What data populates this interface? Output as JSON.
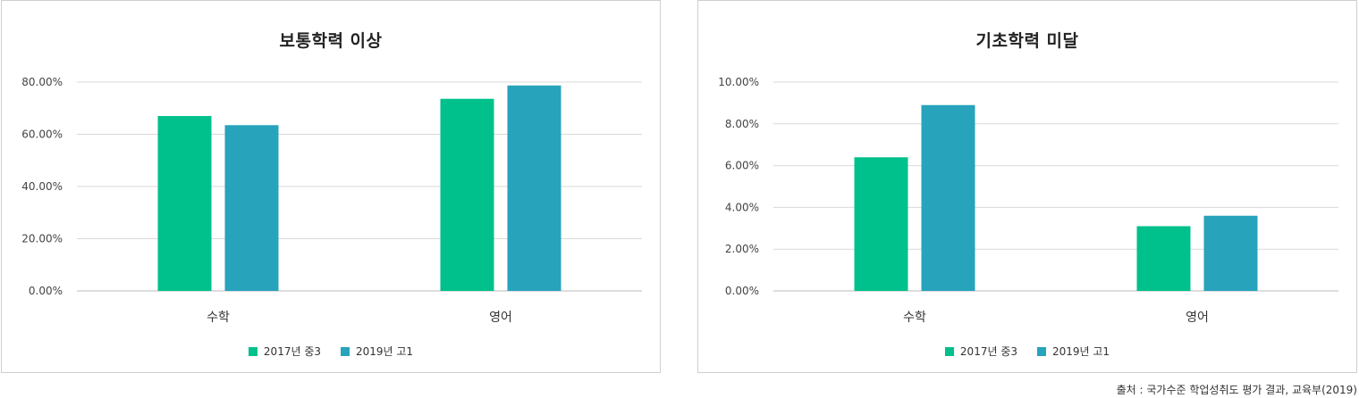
{
  "chart_data": [
    {
      "type": "bar",
      "title": "보통학력 이상",
      "categories": [
        "수학",
        "영어"
      ],
      "series": [
        {
          "name": "2017년 중3",
          "values": [
            67.0,
            73.6
          ],
          "color": "#00c08b"
        },
        {
          "name": "2019년 고1",
          "values": [
            63.5,
            78.7
          ],
          "color": "#27a3bc"
        }
      ],
      "yticks": [
        "80.00%",
        "60.00%",
        "40.00%",
        "20.00%",
        "0.00%"
      ],
      "ylim": [
        0,
        80
      ],
      "grid": true,
      "legend": "bottom"
    },
    {
      "type": "bar",
      "title": "기초학력 미달",
      "categories": [
        "수학",
        "영어"
      ],
      "series": [
        {
          "name": "2017년 중3",
          "values": [
            6.4,
            3.1
          ],
          "color": "#00c08b"
        },
        {
          "name": "2019년 고1",
          "values": [
            8.9,
            3.6
          ],
          "color": "#27a3bc"
        }
      ],
      "yticks": [
        "10.00%",
        "8.00%",
        "6.00%",
        "4.00%",
        "2.00%",
        "0.00%"
      ],
      "ylim": [
        0,
        10
      ],
      "grid": true,
      "legend": "bottom"
    }
  ],
  "source": "출처 : 국가수준 학업성취도 평가 결과, 교육부(2019)"
}
